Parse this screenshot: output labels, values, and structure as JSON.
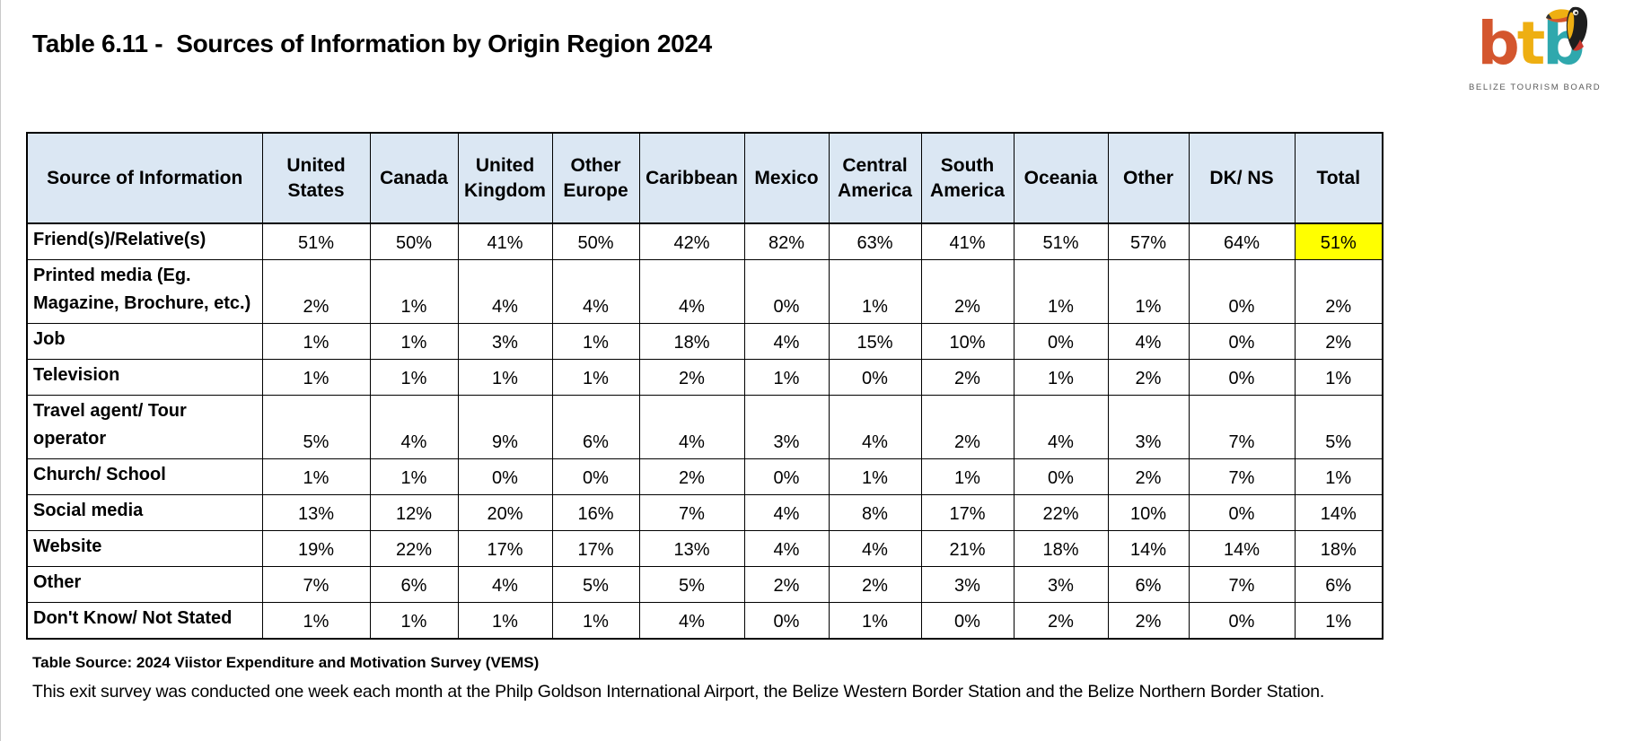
{
  "title": "Table 6.11 -  Sources of Information by Origin Region 2024",
  "logo": {
    "letters": [
      "b",
      "t",
      "b"
    ],
    "caption": "BELIZE TOURISM BOARD"
  },
  "colors": {
    "header_bg": "#dbe7f3",
    "highlight": "#ffff00",
    "logo_orange": "#d4562e",
    "logo_yellow": "#eeaf12",
    "logo_teal": "#2fa8ad"
  },
  "table": {
    "header": [
      "Source of Information",
      "United States",
      "Canada",
      "United Kingdom",
      "Other Europe",
      "Caribbean",
      "Mexico",
      "Central America",
      "South America",
      "Oceania",
      "Other",
      "DK/ NS",
      "Total"
    ],
    "rows": [
      {
        "label": "Friend(s)/Relative(s)",
        "values": [
          "51%",
          "50%",
          "41%",
          "50%",
          "42%",
          "82%",
          "63%",
          "41%",
          "51%",
          "57%",
          "64%",
          "51%"
        ],
        "highlight_total": true
      },
      {
        "label": "Printed media (Eg. Magazine, Brochure, etc.)",
        "values": [
          "2%",
          "1%",
          "4%",
          "4%",
          "4%",
          "0%",
          "1%",
          "2%",
          "1%",
          "1%",
          "0%",
          "2%"
        ],
        "highlight_total": false
      },
      {
        "label": "Job",
        "values": [
          "1%",
          "1%",
          "3%",
          "1%",
          "18%",
          "4%",
          "15%",
          "10%",
          "0%",
          "4%",
          "0%",
          "2%"
        ],
        "highlight_total": false
      },
      {
        "label": "Television",
        "values": [
          "1%",
          "1%",
          "1%",
          "1%",
          "2%",
          "1%",
          "0%",
          "2%",
          "1%",
          "2%",
          "0%",
          "1%"
        ],
        "highlight_total": false
      },
      {
        "label": "Travel agent/ Tour operator",
        "values": [
          "5%",
          "4%",
          "9%",
          "6%",
          "4%",
          "3%",
          "4%",
          "2%",
          "4%",
          "3%",
          "7%",
          "5%"
        ],
        "highlight_total": false
      },
      {
        "label": "Church/ School",
        "values": [
          "1%",
          "1%",
          "0%",
          "0%",
          "2%",
          "0%",
          "1%",
          "1%",
          "0%",
          "2%",
          "7%",
          "1%"
        ],
        "highlight_total": false
      },
      {
        "label": "Social media",
        "values": [
          "13%",
          "12%",
          "20%",
          "16%",
          "7%",
          "4%",
          "8%",
          "17%",
          "22%",
          "10%",
          "0%",
          "14%"
        ],
        "highlight_total": false
      },
      {
        "label": "Website",
        "values": [
          "19%",
          "22%",
          "17%",
          "17%",
          "13%",
          "4%",
          "4%",
          "21%",
          "18%",
          "14%",
          "14%",
          "18%"
        ],
        "highlight_total": false
      },
      {
        "label": "Other",
        "values": [
          "7%",
          "6%",
          "4%",
          "5%",
          "5%",
          "2%",
          "2%",
          "3%",
          "3%",
          "6%",
          "7%",
          "6%"
        ],
        "highlight_total": false
      },
      {
        "label": "Don't Know/ Not Stated",
        "values": [
          "1%",
          "1%",
          "1%",
          "1%",
          "4%",
          "0%",
          "1%",
          "0%",
          "2%",
          "2%",
          "0%",
          "1%"
        ],
        "highlight_total": false
      }
    ]
  },
  "footer": {
    "source": "Table Source: 2024 Viistor Expenditure and Motivation Survey (VEMS)",
    "note": "This exit survey was conducted one week each month at the Philp Goldson International Airport, the Belize Western Border Station and the Belize Northern Border Station."
  }
}
